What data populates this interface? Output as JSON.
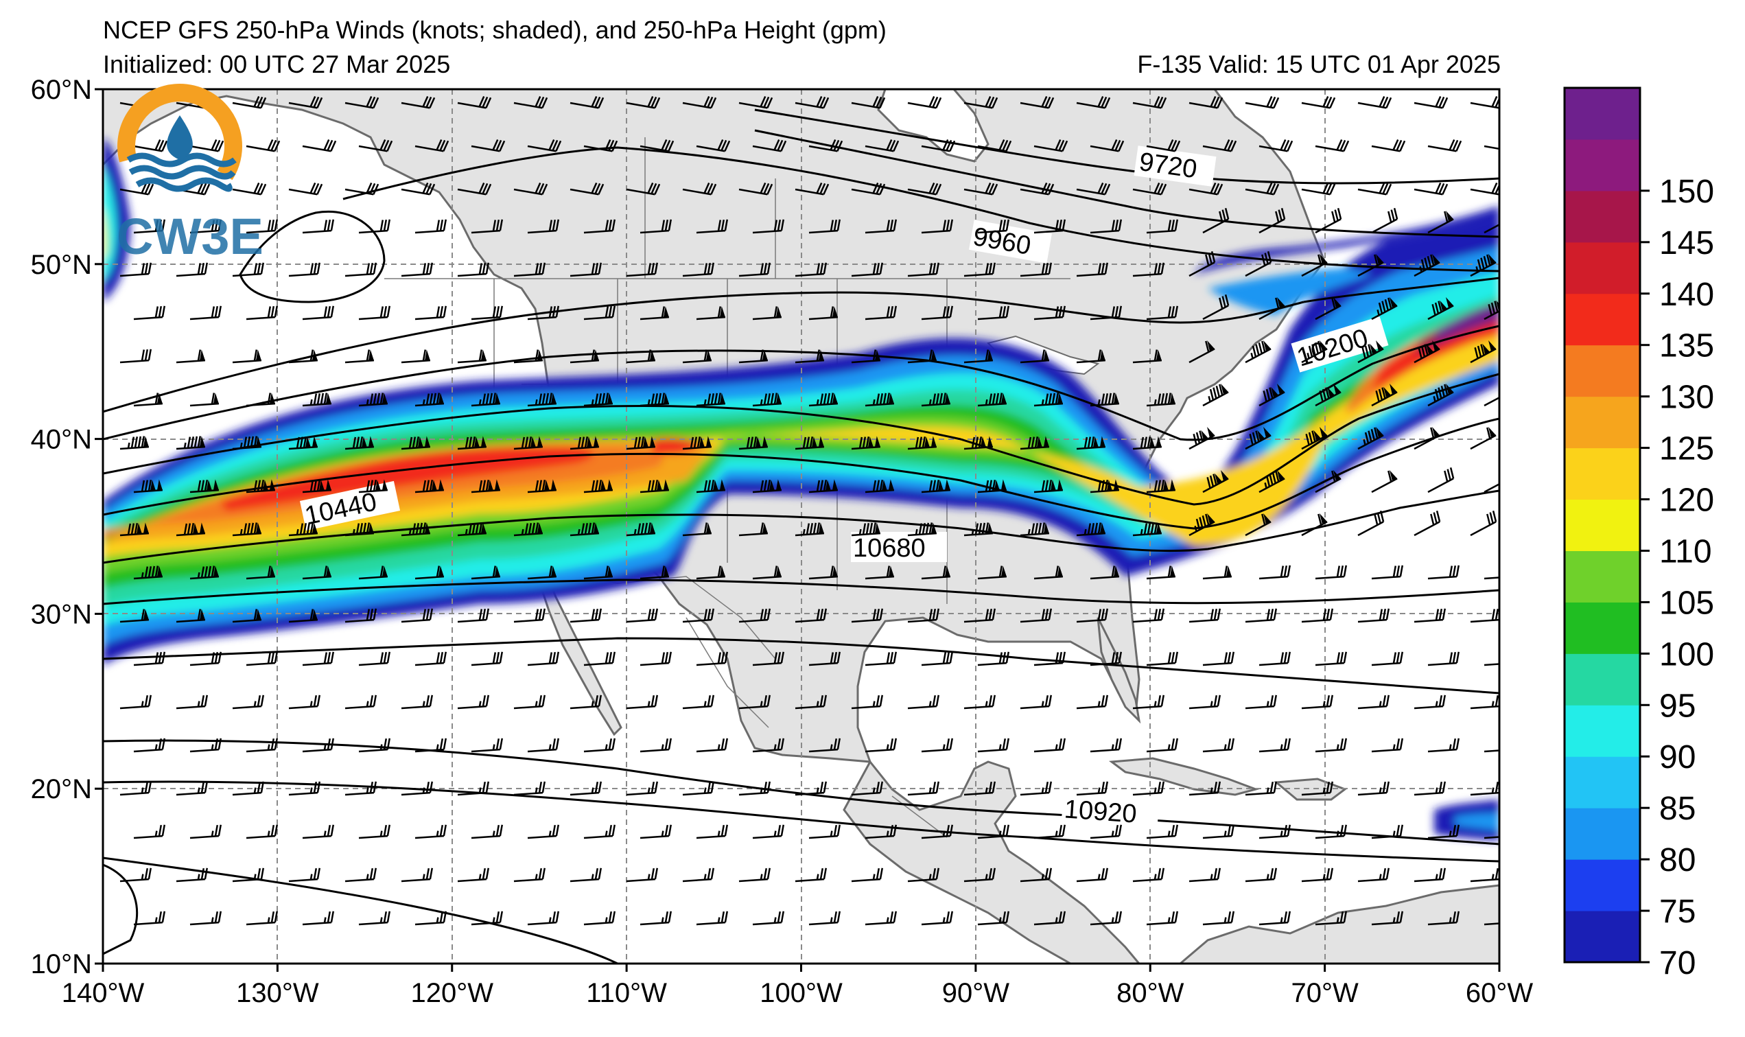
{
  "header": {
    "title": "NCEP GFS 250-hPa Winds (knots; shaded), and 250-hPa Height (gpm)",
    "initialized": "Initialized: 00 UTC 27 Mar 2025",
    "valid": "F-135  Valid: 15 UTC 01 Apr 2025"
  },
  "logo": {
    "text": "CW3E",
    "colors": [
      "#f5a021",
      "#1f6fa5",
      "#3aa0d8"
    ]
  },
  "map": {
    "lon_range": [
      -140,
      -60
    ],
    "lat_range": [
      10,
      60
    ],
    "lon_ticks": [
      "140°W",
      "130°W",
      "120°W",
      "110°W",
      "100°W",
      "90°W",
      "80°W",
      "70°W",
      "60°W"
    ],
    "lat_ticks": [
      "60°N",
      "50°N",
      "40°N",
      "30°N",
      "20°N",
      "10°N"
    ],
    "land_color": "#e3e3e3",
    "border_color": "#6b6b6b",
    "grid": "dashed"
  },
  "contour_labels": [
    "9720",
    "9960",
    "10200",
    "10440",
    "10680",
    "10920"
  ],
  "colorbar": {
    "levels": [
      70,
      75,
      80,
      85,
      90,
      95,
      100,
      105,
      110,
      120,
      125,
      130,
      135,
      140,
      145,
      150,
      155
    ],
    "tick_labels": [
      "70",
      "75",
      "80",
      "85",
      "90",
      "95",
      "100",
      "105",
      "110",
      "120",
      "125",
      "130",
      "135",
      "140",
      "145",
      "150"
    ],
    "colors": [
      "#1a1fb5",
      "#1c3ff0",
      "#1a96f2",
      "#22c4f5",
      "#23ede8",
      "#25d8a2",
      "#20be22",
      "#6fd12b",
      "#f1f210",
      "#fbd21a",
      "#f6a51d",
      "#f47b20",
      "#f22b1b",
      "#d11d2a",
      "#a7164a",
      "#8d1a7d",
      "#6e208d"
    ]
  }
}
